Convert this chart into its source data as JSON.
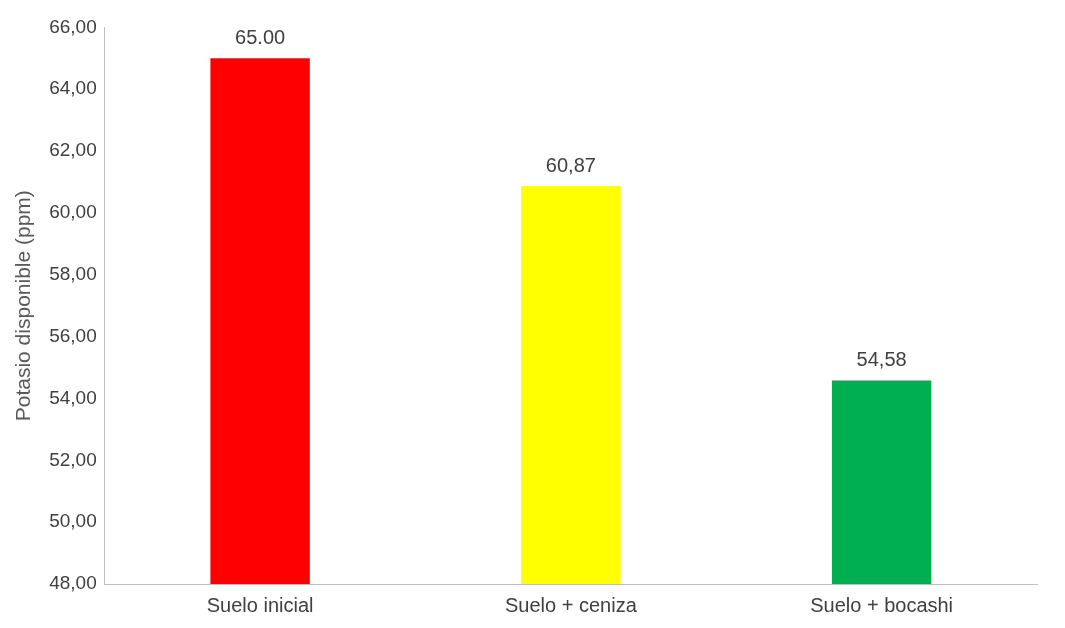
{
  "chart_data": {
    "type": "bar",
    "ylabel": "Potasio disponible (ppm)",
    "categories": [
      "Suelo inicial",
      "Suelo + ceniza",
      "Suelo + bocashi"
    ],
    "values": [
      65.0,
      60.87,
      54.58
    ],
    "colors": [
      "#ff0000",
      "#ffff00",
      "#00b050"
    ],
    "value_labels": [
      "65.00",
      "60,87",
      "54,58"
    ],
    "ylim": [
      48,
      66
    ],
    "yticks": [
      {
        "value": 48,
        "label": "48,00"
      },
      {
        "value": 50,
        "label": "50,00"
      },
      {
        "value": 52,
        "label": "52,00"
      },
      {
        "value": 54,
        "label": "54,00"
      },
      {
        "value": 56,
        "label": "56,00"
      },
      {
        "value": 58,
        "label": "58,00"
      },
      {
        "value": 60,
        "label": "60,00"
      },
      {
        "value": 62,
        "label": "62,00"
      },
      {
        "value": 64,
        "label": "64,00"
      },
      {
        "value": 66,
        "label": "66,00"
      }
    ],
    "grid": false,
    "legend": false
  }
}
